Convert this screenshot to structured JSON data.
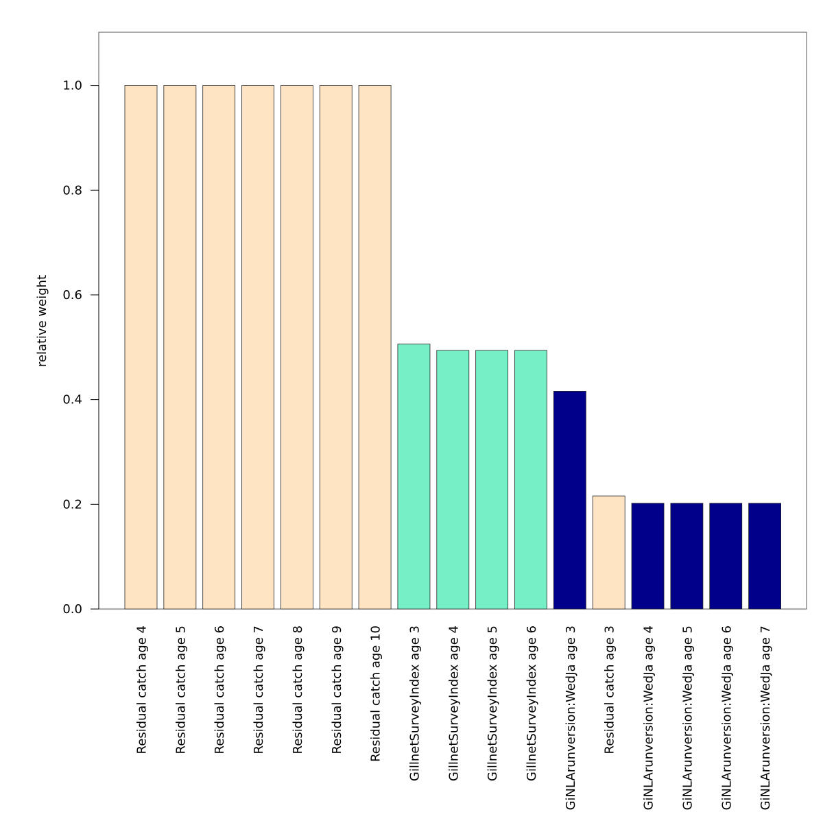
{
  "chart_data": {
    "type": "bar",
    "title": "",
    "xlabel": "",
    "ylabel": "relative weight",
    "ylim": [
      0,
      1.1
    ],
    "yticks": [
      "0.0",
      "0.2",
      "0.4",
      "0.6",
      "0.8",
      "1.0"
    ],
    "grid": false,
    "categories": [
      "Residual catch age 4",
      "Residual catch age 5",
      "Residual catch age 6",
      "Residual catch age 7",
      "Residual catch age 8",
      "Residual catch age 9",
      "Residual catch age 10",
      "GillnetSurveyIndex age 3",
      "GillnetSurveyIndex age 4",
      "GillnetSurveyIndex age 5",
      "GillnetSurveyIndex age 6",
      "GiNLArunversion:WedJa age 3",
      "Residual catch age 3",
      "GiNLArunversion:WedJa age 4",
      "GiNLArunversion:WedJa age 5",
      "GiNLArunversion:WedJa age 6",
      "GiNLArunversion:WedJa age 7"
    ],
    "values": [
      1.0,
      1.0,
      1.0,
      1.0,
      1.0,
      1.0,
      1.0,
      0.506,
      0.494,
      0.494,
      0.494,
      0.416,
      0.216,
      0.202,
      0.202,
      0.202,
      0.202
    ],
    "colors": [
      "#FFE4C4",
      "#FFE4C4",
      "#FFE4C4",
      "#FFE4C4",
      "#FFE4C4",
      "#FFE4C4",
      "#FFE4C4",
      "#76EEC6",
      "#76EEC6",
      "#76EEC6",
      "#76EEC6",
      "#00008B",
      "#FFE4C4",
      "#00008B",
      "#00008B",
      "#00008B",
      "#00008B"
    ]
  }
}
